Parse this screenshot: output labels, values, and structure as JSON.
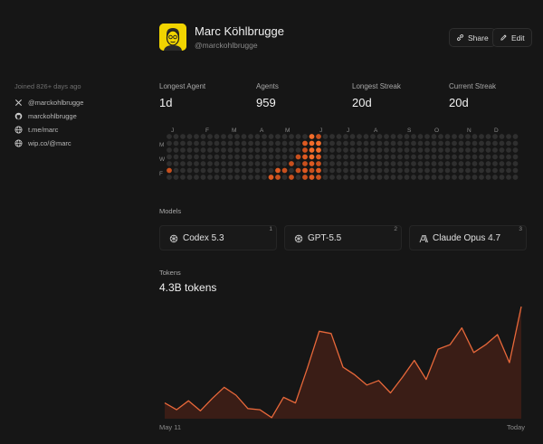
{
  "profile": {
    "name": "Marc Köhlbrugge",
    "handle": "@marckohlbrugge",
    "avatar_color": "#f1d400"
  },
  "actions": {
    "share_label": "Share",
    "edit_label": "Edit"
  },
  "sidebar": {
    "joined": "Joined 826+ days ago",
    "links": [
      {
        "icon": "x-icon",
        "label": "@marckohlbrugge"
      },
      {
        "icon": "github-icon",
        "label": "marckohlbrugge"
      },
      {
        "icon": "globe-icon",
        "label": "t.me/marc"
      },
      {
        "icon": "globe-icon",
        "label": "wip.co/@marc"
      }
    ]
  },
  "stats": [
    {
      "label": "Longest Agent",
      "value": "1d"
    },
    {
      "label": "Agents",
      "value": "959"
    },
    {
      "label": "Longest Streak",
      "value": "20d"
    },
    {
      "label": "Current Streak",
      "value": "20d"
    }
  ],
  "heatmap": {
    "months": [
      "J",
      "F",
      "M",
      "A",
      "M",
      "J",
      "J",
      "A",
      "S",
      "O",
      "N",
      "D"
    ],
    "day_labels": [
      "M",
      "W",
      "F"
    ],
    "empty_color": "#2f2f2f",
    "active_colors": [
      "#c8501e",
      "#dd5a22",
      "#f26c2a"
    ]
  },
  "models": {
    "title": "Models",
    "items": [
      {
        "rank": "1",
        "icon": "openai-icon",
        "name": "Codex 5.3"
      },
      {
        "rank": "2",
        "icon": "openai-icon",
        "name": "GPT-5.5"
      },
      {
        "rank": "3",
        "icon": "anthropic-icon",
        "name": "Claude Opus 4.7"
      }
    ]
  },
  "tokens": {
    "title": "Tokens",
    "total": "4.3B tokens",
    "start_label": "May 11",
    "end_label": "Today",
    "line_color": "#e8683a",
    "fill_color": "#3a1d16"
  },
  "chart_data": {
    "type": "area",
    "title": "Tokens",
    "x_start": "May 11",
    "x_end": "Today",
    "values": [
      14,
      8,
      16,
      7,
      18,
      28,
      21,
      9,
      8,
      1,
      19,
      14,
      45,
      78,
      76,
      46,
      39,
      30,
      34,
      23,
      37,
      52,
      35,
      62,
      66,
      81,
      59,
      66,
      75,
      50,
      100
    ]
  }
}
